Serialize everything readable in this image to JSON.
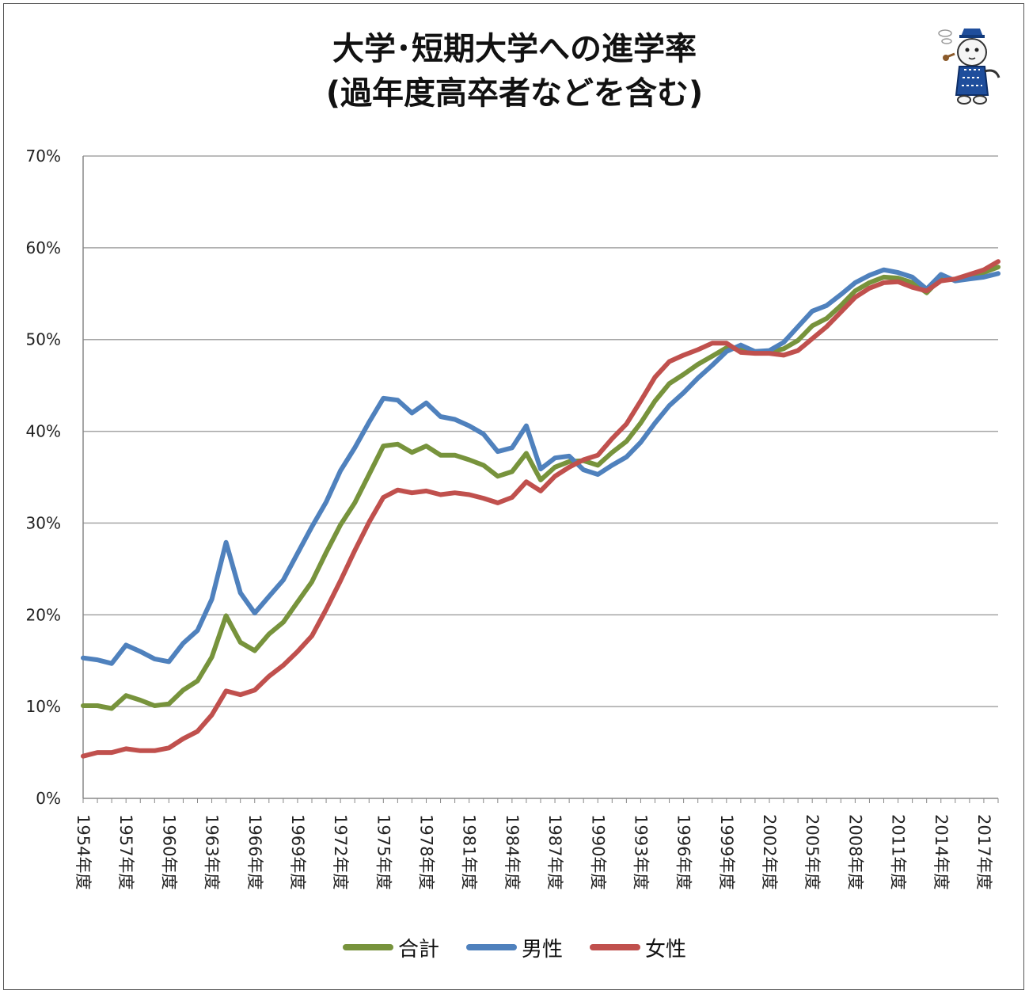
{
  "title": {
    "line1": "大学･短期大学への進学率",
    "line2": "(過年度高卒者などを含む)"
  },
  "icons": {
    "mascot": "mascot-icon"
  },
  "colors": {
    "total": "#77933c",
    "male": "#4f81bd",
    "female": "#c0504d",
    "grid": "#a6a6a6"
  },
  "chart_data": {
    "type": "line",
    "title": "大学･短期大学への進学率 (過年度高卒者などを含む)",
    "ylim": [
      0,
      70
    ],
    "y_ticks": [
      "0%",
      "10%",
      "20%",
      "30%",
      "40%",
      "50%",
      "60%",
      "70%"
    ],
    "y_tick_values": [
      0,
      10,
      20,
      30,
      40,
      50,
      60,
      70
    ],
    "x_ticks": [
      "1954年度",
      "1957年度",
      "1960年度",
      "1963年度",
      "1966年度",
      "1969年度",
      "1972年度",
      "1975年度",
      "1978年度",
      "1981年度",
      "1984年度",
      "1987年度",
      "1990年度",
      "1993年度",
      "1996年度",
      "1999年度",
      "2002年度",
      "2005年度",
      "2008年度",
      "2011年度",
      "2014年度",
      "2017年度"
    ],
    "x_tick_years": [
      1954,
      1957,
      1960,
      1963,
      1966,
      1969,
      1972,
      1975,
      1978,
      1981,
      1984,
      1987,
      1990,
      1993,
      1996,
      1999,
      2002,
      2005,
      2008,
      2011,
      2014,
      2017
    ],
    "x": [
      1954,
      1955,
      1956,
      1957,
      1958,
      1959,
      1960,
      1961,
      1962,
      1963,
      1964,
      1965,
      1966,
      1967,
      1968,
      1969,
      1970,
      1971,
      1972,
      1973,
      1974,
      1975,
      1976,
      1977,
      1978,
      1979,
      1980,
      1981,
      1982,
      1983,
      1984,
      1985,
      1986,
      1987,
      1988,
      1989,
      1990,
      1991,
      1992,
      1993,
      1994,
      1995,
      1996,
      1997,
      1998,
      1999,
      2000,
      2001,
      2002,
      2003,
      2004,
      2005,
      2006,
      2007,
      2008,
      2009,
      2010,
      2011,
      2012,
      2013,
      2014,
      2015,
      2016,
      2017,
      2018
    ],
    "grid": true,
    "legend_position": "bottom",
    "series": [
      {
        "name": "合計",
        "color": "#77933c",
        "values": [
          10.1,
          10.1,
          9.8,
          11.2,
          10.7,
          10.1,
          10.3,
          11.8,
          12.8,
          15.4,
          19.9,
          17.0,
          16.1,
          17.9,
          19.2,
          21.4,
          23.6,
          26.8,
          29.8,
          32.2,
          35.3,
          38.4,
          38.6,
          37.7,
          38.4,
          37.4,
          37.4,
          36.9,
          36.3,
          35.1,
          35.6,
          37.6,
          34.7,
          36.1,
          36.7,
          36.8,
          36.3,
          37.7,
          38.9,
          40.9,
          43.3,
          45.2,
          46.2,
          47.3,
          48.2,
          49.1,
          49.1,
          48.7,
          48.6,
          49.0,
          49.9,
          51.5,
          52.3,
          53.7,
          55.3,
          56.2,
          56.8,
          56.7,
          56.2,
          55.1,
          56.7,
          56.5,
          56.8,
          57.3,
          57.9
        ]
      },
      {
        "name": "男性",
        "color": "#4f81bd",
        "values": [
          15.3,
          15.1,
          14.7,
          16.7,
          16.0,
          15.2,
          14.9,
          16.9,
          18.3,
          21.7,
          27.9,
          22.4,
          20.2,
          22.0,
          23.8,
          26.7,
          29.6,
          32.3,
          35.7,
          38.2,
          41.0,
          43.6,
          43.4,
          42.0,
          43.1,
          41.6,
          41.3,
          40.6,
          39.7,
          37.8,
          38.2,
          40.6,
          35.9,
          37.1,
          37.3,
          35.8,
          35.3,
          36.3,
          37.2,
          38.8,
          40.9,
          42.8,
          44.2,
          45.8,
          47.2,
          48.7,
          49.4,
          48.7,
          48.8,
          49.7,
          51.4,
          53.1,
          53.7,
          54.9,
          56.2,
          57.0,
          57.6,
          57.3,
          56.8,
          55.5,
          57.1,
          56.4,
          56.6,
          56.8,
          57.2
        ]
      },
      {
        "name": "女性",
        "color": "#c0504d",
        "values": [
          4.6,
          5.0,
          5.0,
          5.4,
          5.2,
          5.2,
          5.5,
          6.5,
          7.3,
          9.1,
          11.7,
          11.3,
          11.8,
          13.3,
          14.5,
          16.0,
          17.7,
          20.6,
          23.7,
          27.0,
          30.1,
          32.8,
          33.6,
          33.3,
          33.5,
          33.1,
          33.3,
          33.1,
          32.7,
          32.2,
          32.8,
          34.5,
          33.5,
          35.1,
          36.1,
          36.9,
          37.4,
          39.2,
          40.8,
          43.3,
          45.9,
          47.6,
          48.3,
          48.9,
          49.6,
          49.6,
          48.6,
          48.5,
          48.5,
          48.3,
          48.8,
          50.1,
          51.4,
          53.0,
          54.6,
          55.6,
          56.2,
          56.3,
          55.7,
          55.3,
          56.4,
          56.6,
          57.1,
          57.6,
          58.5
        ]
      }
    ]
  }
}
